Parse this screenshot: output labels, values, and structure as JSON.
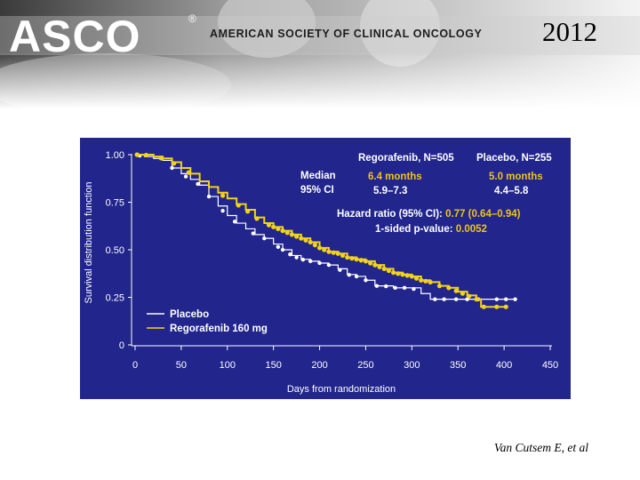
{
  "header": {
    "logo": "ASCO",
    "registered_mark": "®",
    "society_name": "AMERICAN SOCIETY OF CLINICAL ONCOLOGY",
    "year": "2012"
  },
  "colors": {
    "panel": "#21258c",
    "placebo": "#ffffff",
    "regorafenib": "#f2d21a",
    "highlight": "#f2c21a",
    "text": "#ffffff"
  },
  "chart_data": {
    "type": "line",
    "title": "",
    "xlabel": "Days from randomization",
    "ylabel": "Survival distribution function",
    "xlim": [
      0,
      450
    ],
    "ylim": [
      0,
      1
    ],
    "x_ticks": [
      "0",
      "50",
      "100",
      "150",
      "200",
      "250",
      "300",
      "350",
      "400",
      "450"
    ],
    "y_ticks": [
      "0",
      "0.25",
      "0.50",
      "0.75",
      "1.00"
    ],
    "legend": {
      "placement": "bottom-left",
      "entries": [
        "Placebo",
        "Regorafenib 160 mg"
      ]
    },
    "annotations": {
      "col_regorafenib": "Regorafenib, N=505",
      "col_placebo": "Placebo, N=255",
      "median_label_1": "Median",
      "median_label_2": "95% CI",
      "rego_median": "6.4 months",
      "rego_ci": "5.9–7.3",
      "placebo_median": "5.0 months",
      "placebo_ci": "4.4–5.8",
      "hr_label": "Hazard ratio (95% CI):",
      "hr_value": "0.77 (0.64–0.94)",
      "p_label": "1-sided p-value:",
      "p_value": "0.0052"
    },
    "series": [
      {
        "name": "Placebo",
        "color": "#ffffff",
        "x": [
          0,
          10,
          20,
          30,
          40,
          50,
          60,
          70,
          80,
          90,
          100,
          110,
          120,
          130,
          140,
          150,
          160,
          170,
          180,
          190,
          200,
          210,
          220,
          230,
          240,
          250,
          260,
          270,
          280,
          290,
          300,
          310,
          320,
          340,
          360,
          380,
          400,
          410
        ],
        "y": [
          1.0,
          0.99,
          0.98,
          0.97,
          0.93,
          0.9,
          0.87,
          0.84,
          0.78,
          0.73,
          0.68,
          0.64,
          0.61,
          0.58,
          0.56,
          0.53,
          0.5,
          0.47,
          0.45,
          0.44,
          0.43,
          0.42,
          0.4,
          0.37,
          0.36,
          0.34,
          0.31,
          0.31,
          0.3,
          0.3,
          0.3,
          0.27,
          0.24,
          0.24,
          0.24,
          0.24,
          0.24,
          0.24
        ],
        "markers_x": [
          5,
          40,
          55,
          68,
          80,
          95,
          108,
          128,
          140,
          155,
          160,
          168,
          175,
          182,
          190,
          200,
          210,
          222,
          232,
          240,
          250,
          262,
          272,
          282,
          292,
          302,
          325,
          335,
          348,
          360,
          372,
          392,
          402,
          412
        ]
      },
      {
        "name": "Regorafenib 160 mg",
        "color": "#f2d21a",
        "x": [
          0,
          10,
          20,
          30,
          40,
          50,
          60,
          70,
          80,
          90,
          100,
          110,
          120,
          130,
          140,
          150,
          160,
          170,
          180,
          190,
          200,
          210,
          220,
          230,
          240,
          250,
          260,
          270,
          280,
          290,
          300,
          310,
          320,
          330,
          340,
          350,
          360,
          370,
          375,
          380,
          390,
          400
        ],
        "y": [
          1.0,
          1.0,
          0.99,
          0.98,
          0.96,
          0.93,
          0.9,
          0.86,
          0.83,
          0.8,
          0.77,
          0.74,
          0.71,
          0.67,
          0.64,
          0.62,
          0.6,
          0.58,
          0.56,
          0.54,
          0.51,
          0.49,
          0.48,
          0.46,
          0.45,
          0.44,
          0.42,
          0.4,
          0.38,
          0.37,
          0.36,
          0.34,
          0.33,
          0.31,
          0.3,
          0.28,
          0.26,
          0.24,
          0.2,
          0.2,
          0.2,
          0.2
        ],
        "markers_x": [
          2,
          12,
          28,
          42,
          58,
          95,
          112,
          122,
          132,
          145,
          150,
          155,
          160,
          165,
          170,
          175,
          180,
          185,
          190,
          195,
          200,
          205,
          210,
          215,
          220,
          225,
          230,
          235,
          240,
          245,
          250,
          255,
          260,
          265,
          270,
          275,
          280,
          285,
          290,
          295,
          300,
          305,
          310,
          315,
          320,
          330,
          340,
          348,
          355,
          362,
          370,
          378,
          392,
          402
        ]
      }
    ]
  },
  "footer": {
    "citation": "Van Cutsem E, et al"
  }
}
